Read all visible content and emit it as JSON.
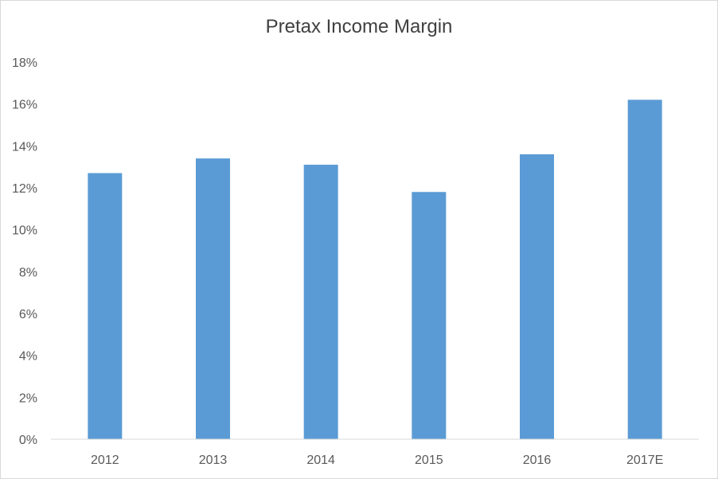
{
  "chart_data": {
    "type": "bar",
    "title": "Pretax Income Margin",
    "xlabel": "",
    "ylabel": "",
    "categories": [
      "2012",
      "2013",
      "2014",
      "2015",
      "2016",
      "2017E"
    ],
    "values": [
      12.7,
      13.4,
      13.1,
      11.8,
      13.6,
      16.2
    ],
    "ylim": [
      0,
      18
    ],
    "ytick_step": 2,
    "ytick_labels": [
      "0%",
      "2%",
      "4%",
      "6%",
      "8%",
      "10%",
      "12%",
      "14%",
      "16%",
      "18%"
    ],
    "grid": false,
    "legend": "none",
    "bar_color": "#5b9bd5",
    "axis_color": "#d9d9d9"
  }
}
